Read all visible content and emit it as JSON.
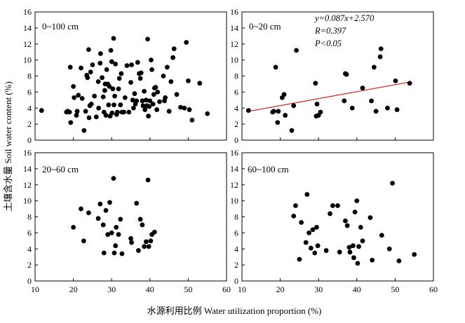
{
  "figure": {
    "xlabel": "水源利用比例  Water utilization proportion (%)",
    "ylabel": "土壤含水量 Soil water content (%)"
  },
  "chart_data": [
    {
      "type": "scatter",
      "panel": "0~100 cm",
      "xlim": [
        10,
        60
      ],
      "ylim": [
        0,
        16
      ],
      "x_ticks": [
        10,
        20,
        30,
        40,
        50,
        60
      ],
      "y_ticks": [
        0,
        2,
        4,
        6,
        8,
        10,
        12,
        14,
        16
      ],
      "x_tick_labels_shown": false,
      "series": [
        {
          "points": [
            [
              11.7,
              3.7
            ],
            [
              18.2,
              3.5
            ],
            [
              18.5,
              3.6
            ],
            [
              19,
              3.5
            ],
            [
              19.2,
              9.1
            ],
            [
              19.3,
              2.2
            ],
            [
              20,
              6.7
            ],
            [
              20.2,
              5.3
            ],
            [
              20.8,
              3.1
            ],
            [
              21,
              3.6
            ],
            [
              21.3,
              5.6
            ],
            [
              22,
              9
            ],
            [
              22.3,
              5.2
            ],
            [
              22.8,
              1.2
            ],
            [
              23.2,
              3.6
            ],
            [
              23.5,
              8.1
            ],
            [
              23.7,
              7.8
            ],
            [
              24,
              11.3
            ],
            [
              24.1,
              2.8
            ],
            [
              24.3,
              4.3
            ],
            [
              24.5,
              8.5
            ],
            [
              24.7,
              4.5
            ],
            [
              25,
              9.4
            ],
            [
              25.5,
              5.5
            ],
            [
              26,
              2.9
            ],
            [
              26.5,
              7.3
            ],
            [
              26.6,
              4
            ],
            [
              27,
              9.6
            ],
            [
              27.1,
              10.8
            ],
            [
              27.5,
              7.8
            ],
            [
              27.8,
              5.4
            ],
            [
              28,
              3.5
            ],
            [
              28.2,
              6.2
            ],
            [
              28.3,
              7
            ],
            [
              28.5,
              3.1
            ],
            [
              28.7,
              8.8
            ],
            [
              29,
              7
            ],
            [
              29.2,
              4.4
            ],
            [
              29.4,
              6.7
            ],
            [
              29.6,
              3
            ],
            [
              29.8,
              11.2
            ],
            [
              30,
              9.8
            ],
            [
              30.1,
              3.4
            ],
            [
              30.3,
              6.4
            ],
            [
              30.5,
              12.7
            ],
            [
              30.6,
              4.4
            ],
            [
              30.8,
              5.5
            ],
            [
              31,
              9.5
            ],
            [
              31.3,
              3.2
            ],
            [
              31.5,
              3.5
            ],
            [
              31.8,
              6.4
            ],
            [
              32,
              7.7
            ],
            [
              32.3,
              4.4
            ],
            [
              32.5,
              8.3
            ],
            [
              32.7,
              3.5
            ],
            [
              33.2,
              3.5
            ],
            [
              33.5,
              5.3
            ],
            [
              34,
              9.3
            ],
            [
              34.5,
              3.5
            ],
            [
              35,
              7.2
            ],
            [
              35.2,
              9.4
            ],
            [
              35.5,
              5
            ],
            [
              35.7,
              4
            ],
            [
              36,
              5.8
            ],
            [
              36.2,
              4.5
            ],
            [
              36.5,
              4.9
            ],
            [
              36.8,
              9.7
            ],
            [
              37.2,
              8.3
            ],
            [
              37.5,
              7.7
            ],
            [
              37.7,
              8.4
            ],
            [
              38,
              4.9
            ],
            [
              38.2,
              4.3
            ],
            [
              38.5,
              6.1
            ],
            [
              38.7,
              3.8
            ],
            [
              39,
              5
            ],
            [
              39.2,
              4.3
            ],
            [
              39.4,
              12.6
            ],
            [
              39.6,
              3
            ],
            [
              39.8,
              4.2
            ],
            [
              40,
              4.9
            ],
            [
              40.3,
              10
            ],
            [
              40.5,
              8.8
            ],
            [
              40.8,
              4.5
            ],
            [
              41,
              5.7
            ],
            [
              41.2,
              6.5
            ],
            [
              41.5,
              6.6
            ],
            [
              41.8,
              3.8
            ],
            [
              42,
              6
            ],
            [
              42.5,
              4.8
            ],
            [
              43.5,
              8
            ],
            [
              43.8,
              4.9
            ],
            [
              44,
              5.3
            ],
            [
              44.5,
              9.1
            ],
            [
              45,
              3.6
            ],
            [
              45.5,
              7.3
            ],
            [
              46,
              10.3
            ],
            [
              46.3,
              11.4
            ],
            [
              47,
              5.7
            ],
            [
              48,
              4.1
            ],
            [
              49,
              4
            ],
            [
              49.5,
              12.2
            ],
            [
              50,
              7.4
            ],
            [
              50.3,
              3.8
            ],
            [
              51,
              2.5
            ],
            [
              53,
              7.1
            ],
            [
              55,
              3.3
            ]
          ]
        }
      ]
    },
    {
      "type": "scatter",
      "panel": "0~20 cm",
      "xlim": [
        10,
        60
      ],
      "ylim": [
        0,
        16
      ],
      "x_ticks": [
        10,
        20,
        30,
        40,
        50,
        60
      ],
      "y_ticks": [
        0,
        2,
        4,
        6,
        8,
        10,
        12,
        14,
        16
      ],
      "x_tick_labels_shown": false,
      "annotation": [
        "y=0.087x+2.570",
        "R=0.397",
        "P<0.05"
      ],
      "fit_line": {
        "slope": 0.087,
        "intercept": 2.57,
        "x_range": [
          11.7,
          53.8
        ],
        "color": "#d62020"
      },
      "series": [
        {
          "points": [
            [
              11.7,
              3.7
            ],
            [
              18,
              3.5
            ],
            [
              18.3,
              3.6
            ],
            [
              18.8,
              9.1
            ],
            [
              19.3,
              2.2
            ],
            [
              19.5,
              3.6
            ],
            [
              20.5,
              5.3
            ],
            [
              21,
              5.7
            ],
            [
              21.3,
              3.1
            ],
            [
              23,
              1.2
            ],
            [
              23.5,
              4.3
            ],
            [
              24.2,
              11.2
            ],
            [
              29.2,
              7.1
            ],
            [
              29.4,
              3
            ],
            [
              29.6,
              4.5
            ],
            [
              30,
              3.1
            ],
            [
              30.5,
              3.5
            ],
            [
              36.7,
              4.9
            ],
            [
              37,
              8.3
            ],
            [
              37.3,
              8.2
            ],
            [
              38.8,
              4
            ],
            [
              41.5,
              6.5
            ],
            [
              43.8,
              4.9
            ],
            [
              44.5,
              9.1
            ],
            [
              45,
              3.6
            ],
            [
              46.1,
              10.4
            ],
            [
              46.3,
              11.4
            ],
            [
              48,
              4
            ],
            [
              50.1,
              7.4
            ],
            [
              50.5,
              3.8
            ],
            [
              53.8,
              7.1
            ]
          ]
        }
      ]
    },
    {
      "type": "scatter",
      "panel": "20~60 cm",
      "xlim": [
        10,
        60
      ],
      "ylim": [
        0,
        16
      ],
      "x_ticks": [
        10,
        20,
        30,
        40,
        50,
        60
      ],
      "y_ticks": [
        0,
        2,
        4,
        6,
        8,
        10,
        12,
        14,
        16
      ],
      "series": [
        {
          "points": [
            [
              20,
              6.7
            ],
            [
              22,
              9
            ],
            [
              22.7,
              5
            ],
            [
              24,
              8.5
            ],
            [
              26.5,
              7.8
            ],
            [
              27,
              9.6
            ],
            [
              27.8,
              7
            ],
            [
              28,
              3.5
            ],
            [
              28.5,
              8.8
            ],
            [
              29,
              5.8
            ],
            [
              29.5,
              9.8
            ],
            [
              30,
              6
            ],
            [
              30.5,
              12.8
            ],
            [
              30.7,
              3.5
            ],
            [
              31,
              4.4
            ],
            [
              31.2,
              6.7
            ],
            [
              31.8,
              5.8
            ],
            [
              32.3,
              7.7
            ],
            [
              32.7,
              3.4
            ],
            [
              35,
              5.3
            ],
            [
              35.2,
              4.8
            ],
            [
              36.5,
              9.7
            ],
            [
              37,
              3.8
            ],
            [
              37.5,
              7.7
            ],
            [
              38,
              7
            ],
            [
              38.5,
              4.3
            ],
            [
              39,
              4.9
            ],
            [
              39.5,
              12.6
            ],
            [
              39.7,
              4.3
            ],
            [
              40.2,
              5
            ],
            [
              40.5,
              5.8
            ],
            [
              41.2,
              6.1
            ]
          ]
        }
      ]
    },
    {
      "type": "scatter",
      "panel": "60~100 cm",
      "xlim": [
        10,
        60
      ],
      "ylim": [
        0,
        16
      ],
      "x_ticks": [
        10,
        20,
        30,
        40,
        50,
        60
      ],
      "y_ticks": [
        0,
        2,
        4,
        6,
        8,
        10,
        12,
        14,
        16
      ],
      "series": [
        {
          "points": [
            [
              23.5,
              8.1
            ],
            [
              24,
              9.4
            ],
            [
              25,
              2.7
            ],
            [
              25.5,
              7.3
            ],
            [
              26.7,
              4.8
            ],
            [
              27,
              10.8
            ],
            [
              27.5,
              6
            ],
            [
              28,
              4.1
            ],
            [
              28.5,
              6.4
            ],
            [
              29,
              3.5
            ],
            [
              29.5,
              6.7
            ],
            [
              29.8,
              4.4
            ],
            [
              32,
              3.8
            ],
            [
              33,
              8.4
            ],
            [
              33.7,
              9.4
            ],
            [
              35,
              9.4
            ],
            [
              35.5,
              3.6
            ],
            [
              37,
              7.5
            ],
            [
              37.5,
              6.9
            ],
            [
              38,
              4.2
            ],
            [
              38.2,
              3.6
            ],
            [
              39,
              4.4
            ],
            [
              39.2,
              2.9
            ],
            [
              39.5,
              8.6
            ],
            [
              40,
              10
            ],
            [
              40.2,
              2.2
            ],
            [
              40.5,
              4.3
            ],
            [
              41,
              6.7
            ],
            [
              41.5,
              5
            ],
            [
              43.5,
              7.9
            ],
            [
              44,
              2.6
            ],
            [
              46.5,
              5.7
            ],
            [
              48.5,
              4
            ],
            [
              49.3,
              12.2
            ],
            [
              51,
              2.5
            ],
            [
              55,
              3.3
            ]
          ]
        }
      ]
    }
  ]
}
